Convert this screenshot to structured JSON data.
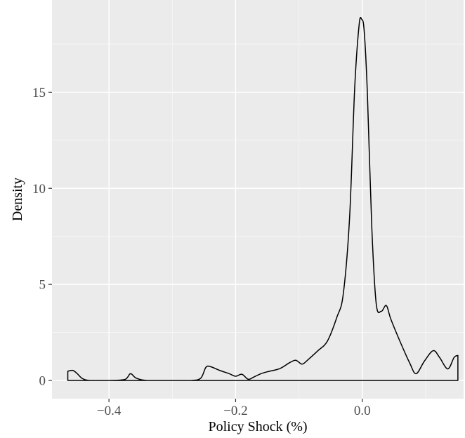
{
  "chart_data": {
    "type": "area",
    "title": "",
    "xlabel": "Policy Shock (%)",
    "ylabel": "Density",
    "xlim": [
      -0.49,
      0.16
    ],
    "ylim": [
      -0.95,
      19.8
    ],
    "x_ticks": [
      -0.4,
      -0.2,
      0.0
    ],
    "x_tick_labels": [
      "−0.4",
      "−0.2",
      "0.0"
    ],
    "y_ticks": [
      0,
      5,
      10,
      15
    ],
    "y_tick_labels": [
      "0",
      "5",
      "10",
      "15"
    ],
    "grid": true,
    "legend": "none",
    "series": [
      {
        "x": [
          -0.465,
          -0.457,
          -0.45,
          -0.442,
          -0.43,
          -0.4,
          -0.375,
          -0.366,
          -0.357,
          -0.34,
          -0.3,
          -0.27,
          -0.255,
          -0.247,
          -0.24,
          -0.225,
          -0.21,
          -0.2,
          -0.19,
          -0.18,
          -0.17,
          -0.16,
          -0.15,
          -0.13,
          -0.115,
          -0.105,
          -0.095,
          -0.085,
          -0.07,
          -0.055,
          -0.04,
          -0.03,
          -0.02,
          -0.012,
          -0.005,
          -0.001,
          0.003,
          0.008,
          0.015,
          0.022,
          0.03,
          0.038,
          0.045,
          0.06,
          0.075,
          0.085,
          0.098,
          0.112,
          0.122,
          0.135,
          0.145,
          0.151
        ],
        "y": [
          0.48,
          0.52,
          0.35,
          0.1,
          0.0,
          0.0,
          0.05,
          0.35,
          0.12,
          0.0,
          0.0,
          0.0,
          0.12,
          0.68,
          0.72,
          0.52,
          0.35,
          0.22,
          0.32,
          0.06,
          0.2,
          0.35,
          0.45,
          0.62,
          0.92,
          1.05,
          0.85,
          1.1,
          1.55,
          2.05,
          3.3,
          4.5,
          8.5,
          15.2,
          18.5,
          18.8,
          18.2,
          15.0,
          8.0,
          4.0,
          3.6,
          3.9,
          3.2,
          2.0,
          0.9,
          0.35,
          1.0,
          1.55,
          1.2,
          0.6,
          1.2,
          1.3
        ]
      }
    ]
  }
}
